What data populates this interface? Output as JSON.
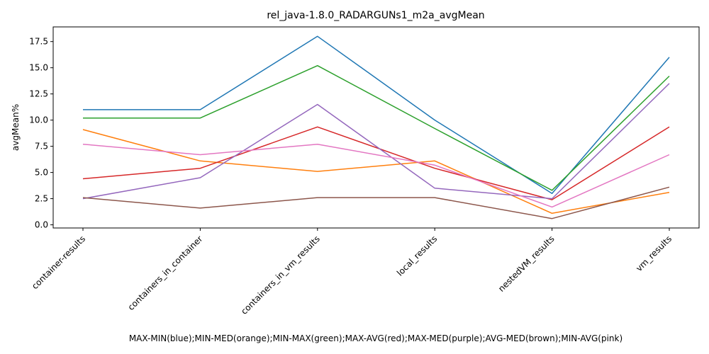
{
  "chart_data": {
    "type": "line",
    "title": "rel_java-1.8.0_RADARGUNs1_m2a_avgMean",
    "xlabel": "MAX-MIN(blue);MIN-MED(orange);MIN-MAX(green);MAX-AVG(red);MAX-MED(purple);AVG-MED(brown);MIN-AVG(pink)",
    "ylabel": "avgMean%",
    "categories": [
      "container-results",
      "containers_in_container",
      "containers_in_vm_results",
      "local_results",
      "nestedVM_results",
      "vm_results"
    ],
    "ylim": [
      -0.3,
      18.9
    ],
    "yticks": [
      "0.0",
      "2.5",
      "5.0",
      "7.5",
      "10.0",
      "12.5",
      "15.0",
      "17.5"
    ],
    "grid": false,
    "series": [
      {
        "color": "#1f77b4",
        "values": [
          11.0,
          11.0,
          18.0,
          10.0,
          3.0,
          16.0
        ]
      },
      {
        "color": "#ff7f0e",
        "values": [
          9.1,
          6.1,
          5.1,
          6.1,
          1.1,
          3.1
        ]
      },
      {
        "color": "#2ca02c",
        "values": [
          10.2,
          10.2,
          15.2,
          9.2,
          3.3,
          14.2
        ]
      },
      {
        "color": "#d62728",
        "values": [
          4.4,
          5.4,
          9.35,
          5.4,
          2.4,
          9.35
        ]
      },
      {
        "color": "#9467bd",
        "values": [
          2.5,
          4.5,
          11.5,
          3.5,
          2.5,
          13.5
        ]
      },
      {
        "color": "#8c564b",
        "values": [
          2.6,
          1.6,
          2.6,
          2.6,
          0.6,
          3.6
        ]
      },
      {
        "color": "#e377c2",
        "values": [
          7.7,
          6.7,
          7.7,
          5.7,
          1.7,
          6.7
        ]
      }
    ]
  }
}
